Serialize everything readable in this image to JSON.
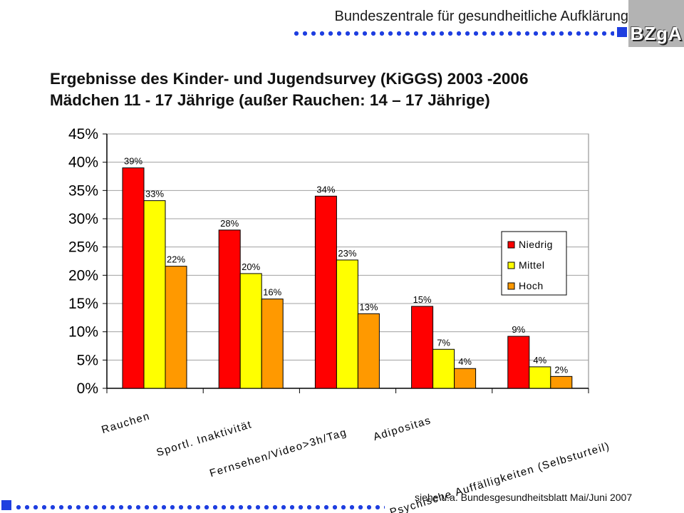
{
  "header": {
    "org_name": "Bundeszentrale für gesundheitliche Aufklärung",
    "logo_text": "BZgA"
  },
  "title_line1": "Ergebnisse des Kinder- und Jugendsurvey (KiGGS) 2003 -2006",
  "title_line2": "Mädchen 11 - 17 Jährige (außer Rauchen: 14 – 17 Jährige)",
  "footer_note": "siehe u.a. Bundesgesundheitsblatt Mai/Juni 2007",
  "colors": {
    "accent": "#1f3fe0",
    "niedrig": "#ff0000",
    "mittel": "#ffff00",
    "hoch": "#ff9900"
  },
  "chart_data": {
    "type": "bar",
    "categories": [
      "Rauchen",
      "Sportl. Inaktivität",
      "Fernsehen/Video>3h/Tag",
      "Adipositas",
      "Psychische Auffälligkeiten (Selbsturteil)"
    ],
    "series": [
      {
        "name": "Niedrig",
        "values": [
          39,
          28,
          34,
          14.5,
          9.2
        ],
        "labels": [
          "39%",
          "28%",
          "34%",
          "15%",
          "9%"
        ],
        "color": "#ff0000"
      },
      {
        "name": "Mittel",
        "values": [
          33.2,
          20.3,
          22.7,
          6.9,
          3.8
        ],
        "labels": [
          "33%",
          "20%",
          "23%",
          "7%",
          "4%"
        ],
        "color": "#ffff00"
      },
      {
        "name": "Hoch",
        "values": [
          21.6,
          15.8,
          13.2,
          3.5,
          2.1
        ],
        "labels": [
          "22%",
          "16%",
          "13%",
          "4%",
          "2%"
        ],
        "color": "#ff9900"
      }
    ],
    "ylim": [
      0,
      45
    ],
    "yticks": [
      "0%",
      "5%",
      "10%",
      "15%",
      "20%",
      "25%",
      "30%",
      "35%",
      "40%",
      "45%"
    ],
    "grid": true,
    "legend_position": "right"
  }
}
